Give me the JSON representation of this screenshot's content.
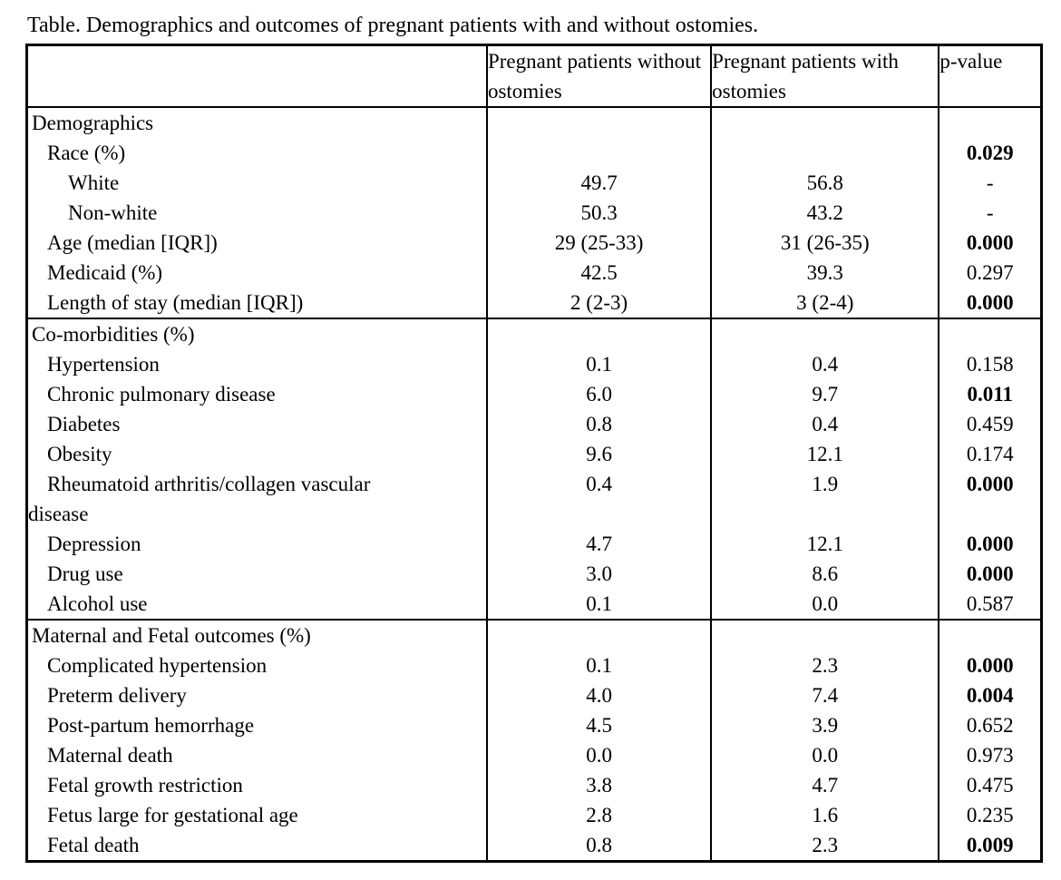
{
  "title": "Table. Demographics and outcomes of pregnant patients with and without ostomies.",
  "columns": {
    "col_without": "Pregnant patients without ostomies",
    "col_with": "Pregnant patients with ostomies",
    "col_p": "p-value"
  },
  "colors": {
    "text": "#000000",
    "background": "#ffffff",
    "border": "#000000"
  },
  "sections": [
    {
      "header": "Demographics",
      "rows": [
        {
          "label": "Race (%)",
          "level": "item",
          "without_ostomies": "",
          "with_ostomies": "",
          "p": "0.029",
          "p_bold": true
        },
        {
          "label": "White",
          "level": "subitem",
          "without_ostomies": "49.7",
          "with_ostomies": "56.8",
          "p": "-",
          "p_bold": false
        },
        {
          "label": "Non-white",
          "level": "subitem",
          "without_ostomies": "50.3",
          "with_ostomies": "43.2",
          "p": "-",
          "p_bold": false
        },
        {
          "label": "Age (median [IQR])",
          "level": "item",
          "without_ostomies": "29 (25-33)",
          "with_ostomies": "31 (26-35)",
          "p": "0.000",
          "p_bold": true
        },
        {
          "label": "Medicaid (%)",
          "level": "item",
          "without_ostomies": "42.5",
          "with_ostomies": "39.3",
          "p": "0.297",
          "p_bold": false
        },
        {
          "label": "Length of stay (median [IQR])",
          "level": "item",
          "without_ostomies": "2 (2-3)",
          "with_ostomies": "3 (2-4)",
          "p": "0.000",
          "p_bold": true
        }
      ]
    },
    {
      "header": "Co-morbidities (%)",
      "rows": [
        {
          "label": "Hypertension",
          "level": "item",
          "without_ostomies": "0.1",
          "with_ostomies": "0.4",
          "p": "0.158",
          "p_bold": false
        },
        {
          "label": "Chronic pulmonary disease",
          "level": "item",
          "without_ostomies": "6.0",
          "with_ostomies": "9.7",
          "p": "0.011",
          "p_bold": true
        },
        {
          "label": "Diabetes",
          "level": "item",
          "without_ostomies": "0.8",
          "with_ostomies": "0.4",
          "p": "0.459",
          "p_bold": false
        },
        {
          "label": "Obesity",
          "level": "item",
          "without_ostomies": "9.6",
          "with_ostomies": "12.1",
          "p": "0.174",
          "p_bold": false
        },
        {
          "label": "Rheumatoid arthritis/collagen vascular\ndisease",
          "level": "item",
          "without_ostomies": "0.4",
          "with_ostomies": "1.9",
          "p": "0.000",
          "p_bold": true
        },
        {
          "label": "Depression",
          "level": "item",
          "without_ostomies": "4.7",
          "with_ostomies": "12.1",
          "p": "0.000",
          "p_bold": true
        },
        {
          "label": "Drug use",
          "level": "item",
          "without_ostomies": "3.0",
          "with_ostomies": "8.6",
          "p": "0.000",
          "p_bold": true
        },
        {
          "label": "Alcohol use",
          "level": "item",
          "without_ostomies": "0.1",
          "with_ostomies": "0.0",
          "p": "0.587",
          "p_bold": false
        }
      ]
    },
    {
      "header": "Maternal and Fetal outcomes (%)",
      "rows": [
        {
          "label": "Complicated hypertension",
          "level": "item",
          "without_ostomies": "0.1",
          "with_ostomies": "2.3",
          "p": "0.000",
          "p_bold": true
        },
        {
          "label": "Preterm delivery",
          "level": "item",
          "without_ostomies": "4.0",
          "with_ostomies": "7.4",
          "p": "0.004",
          "p_bold": true
        },
        {
          "label": "Post-partum hemorrhage",
          "level": "item",
          "without_ostomies": "4.5",
          "with_ostomies": "3.9",
          "p": "0.652",
          "p_bold": false
        },
        {
          "label": "Maternal death",
          "level": "item",
          "without_ostomies": "0.0",
          "with_ostomies": "0.0",
          "p": "0.973",
          "p_bold": false
        },
        {
          "label": "Fetal growth restriction",
          "level": "item",
          "without_ostomies": "3.8",
          "with_ostomies": "4.7",
          "p": "0.475",
          "p_bold": false
        },
        {
          "label": "Fetus large for gestational age",
          "level": "item",
          "without_ostomies": "2.8",
          "with_ostomies": "1.6",
          "p": "0.235",
          "p_bold": false
        },
        {
          "label": "Fetal death",
          "level": "item",
          "without_ostomies": "0.8",
          "with_ostomies": "2.3",
          "p": "0.009",
          "p_bold": true
        }
      ]
    }
  ]
}
